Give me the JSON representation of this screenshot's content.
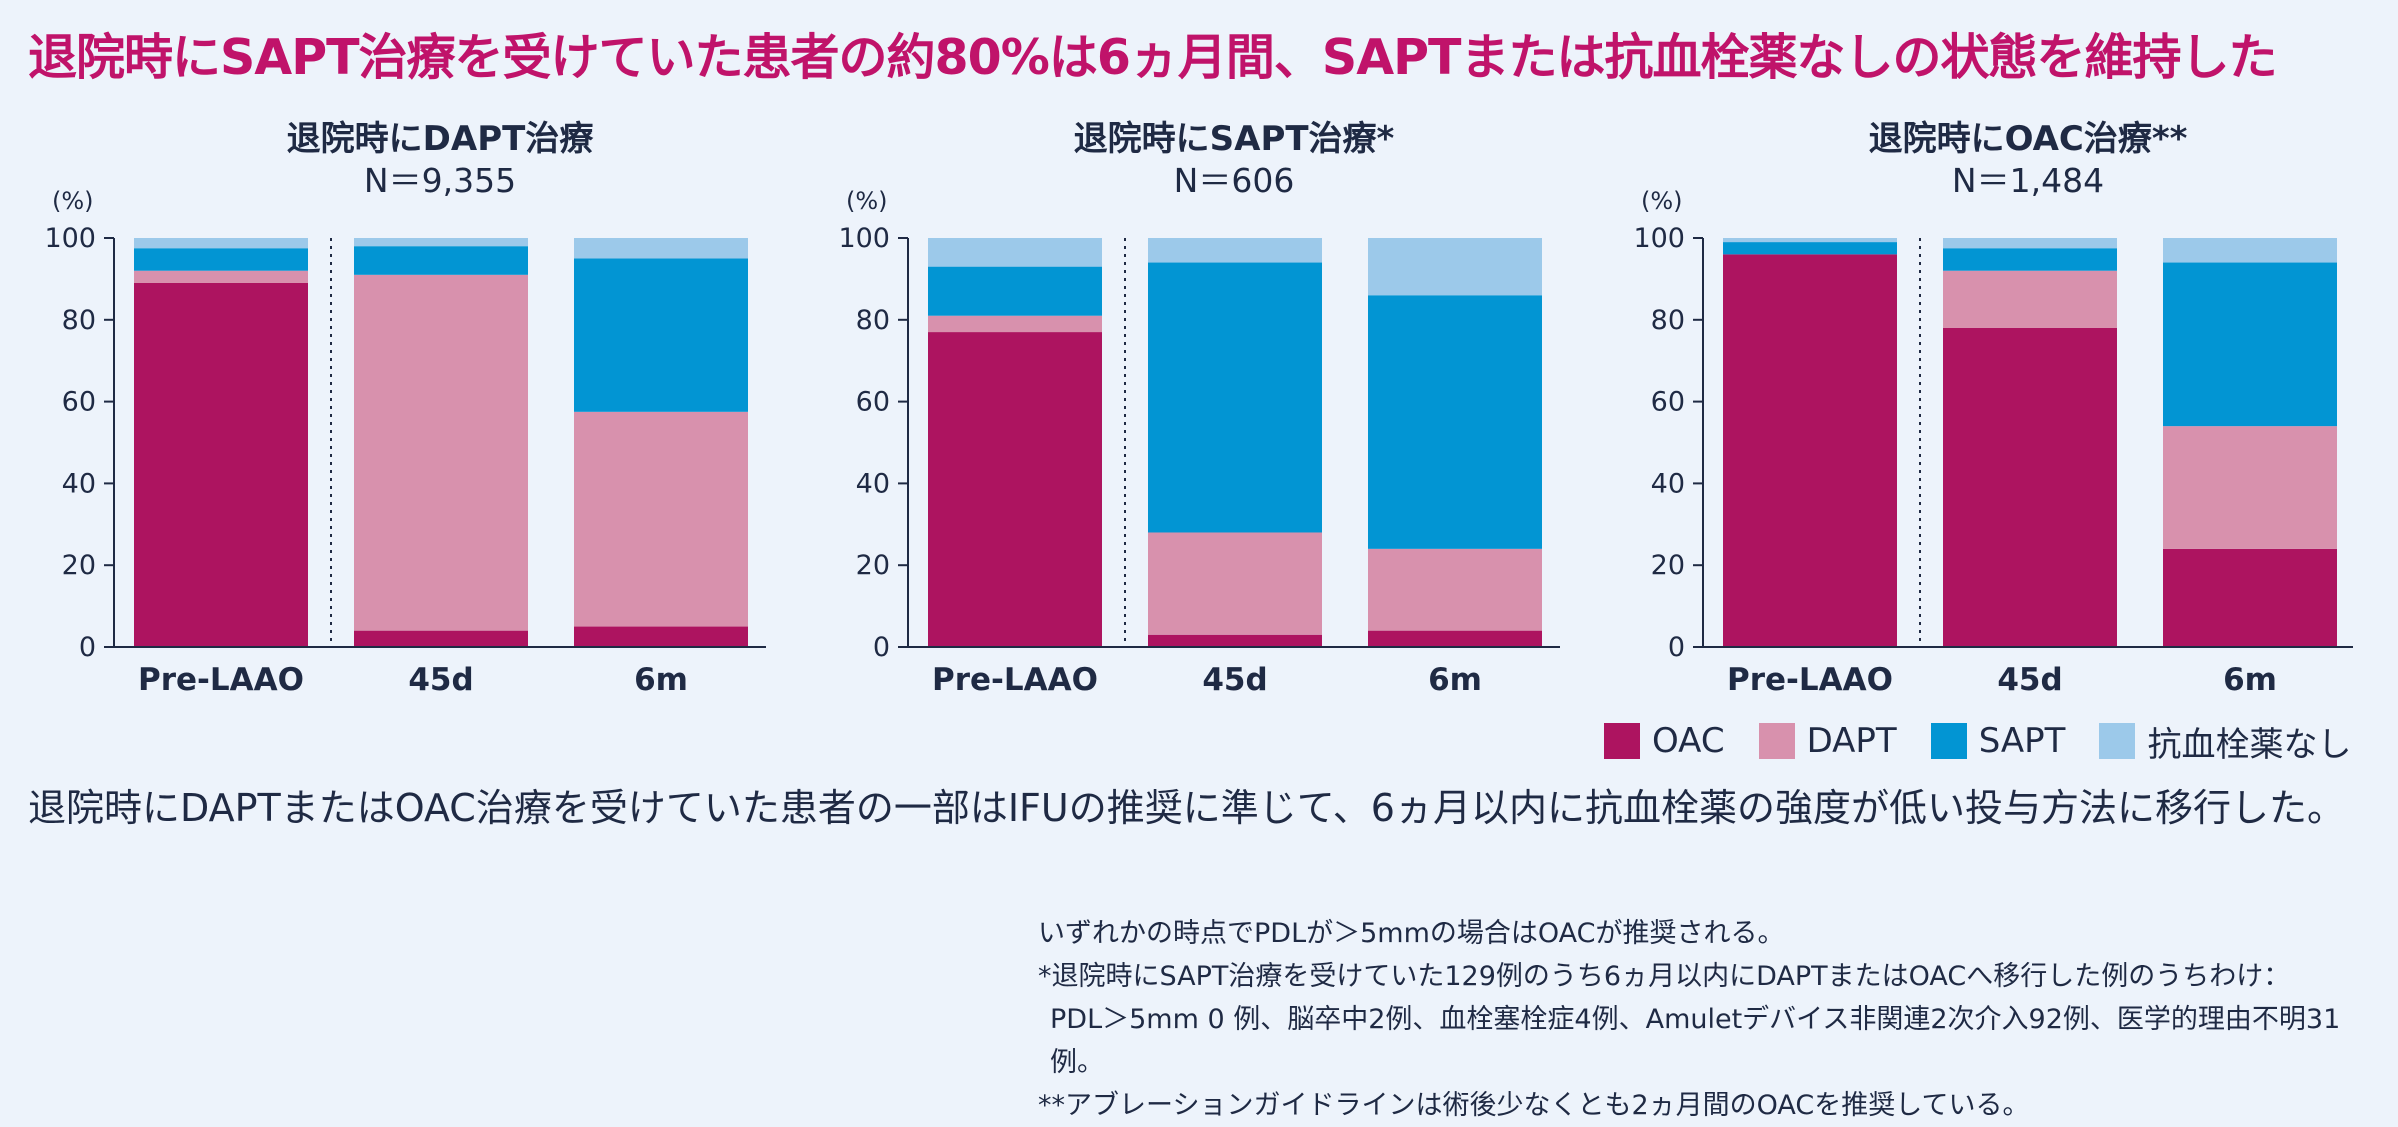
{
  "headline": "退院時にSAPT治療を受けていた患者の約80%は6ヵ月間、SAPTまたは抗血栓薬なしの状態を維持した",
  "legend": [
    {
      "name": "OAC",
      "color": "#ad1460"
    },
    {
      "name": "DAPT",
      "color": "#d891ad"
    },
    {
      "name": "SAPT",
      "color": "#0295d3"
    },
    {
      "name": "抗血栓薬なし",
      "color": "#9cc9ea"
    }
  ],
  "chart_data": [
    {
      "type": "bar",
      "stacked": true,
      "title": "退院時にDAPT治療",
      "subtitle": "N＝9,355",
      "ylabel": "(%)",
      "ylim": [
        0,
        100
      ],
      "yticks": [
        0,
        20,
        40,
        60,
        80,
        100
      ],
      "categories": [
        "Pre-LAAO",
        "45d",
        "6m"
      ],
      "series": [
        {
          "name": "OAC",
          "values": [
            89,
            4,
            5
          ]
        },
        {
          "name": "DAPT",
          "values": [
            3,
            87,
            52.5
          ]
        },
        {
          "name": "SAPT",
          "values": [
            5.5,
            7,
            37.5
          ]
        },
        {
          "name": "抗血栓薬なし",
          "values": [
            2.5,
            2,
            5
          ]
        }
      ]
    },
    {
      "type": "bar",
      "stacked": true,
      "title": "退院時にSAPT治療*",
      "subtitle": "N＝606",
      "ylabel": "(%)",
      "ylim": [
        0,
        100
      ],
      "yticks": [
        0,
        20,
        40,
        60,
        80,
        100
      ],
      "categories": [
        "Pre-LAAO",
        "45d",
        "6m"
      ],
      "series": [
        {
          "name": "OAC",
          "values": [
            77,
            3,
            4
          ]
        },
        {
          "name": "DAPT",
          "values": [
            4,
            25,
            20
          ]
        },
        {
          "name": "SAPT",
          "values": [
            12,
            66,
            62
          ]
        },
        {
          "name": "抗血栓薬なし",
          "values": [
            7,
            6,
            14
          ]
        }
      ]
    },
    {
      "type": "bar",
      "stacked": true,
      "title": "退院時にOAC治療**",
      "subtitle": "N＝1,484",
      "ylabel": "(%)",
      "ylim": [
        0,
        100
      ],
      "yticks": [
        0,
        20,
        40,
        60,
        80,
        100
      ],
      "categories": [
        "Pre-LAAO",
        "45d",
        "6m"
      ],
      "series": [
        {
          "name": "OAC",
          "values": [
            96,
            78,
            24
          ]
        },
        {
          "name": "DAPT",
          "values": [
            0,
            14,
            30
          ]
        },
        {
          "name": "SAPT",
          "values": [
            3,
            5.5,
            40
          ]
        },
        {
          "name": "抗血栓薬なし",
          "values": [
            1,
            2.5,
            6
          ]
        }
      ]
    }
  ],
  "summary": "退院時にDAPTまたはOAC治療を受けていた患者の一部はIFUの推奨に準じて、6ヵ月以内に抗血栓薬の強度が低い投与方法に移行した。",
  "notes": [
    "いずれかの時点でPDLが＞5mmの場合はOACが推奨される。",
    "*退院時にSAPT治療を受けていた129例のうち6ヵ月以内にDAPTまたはOACへ移行した例のうちわけ：",
    "PDL＞5mm 0 例、脳卒中2例、血栓塞栓症4例、Amuletデバイス非関連2次介入92例、医学的理由不明31例。",
    "**アブレーションガイドラインは術後少なくとも2ヵ月間のOACを推奨している。"
  ]
}
